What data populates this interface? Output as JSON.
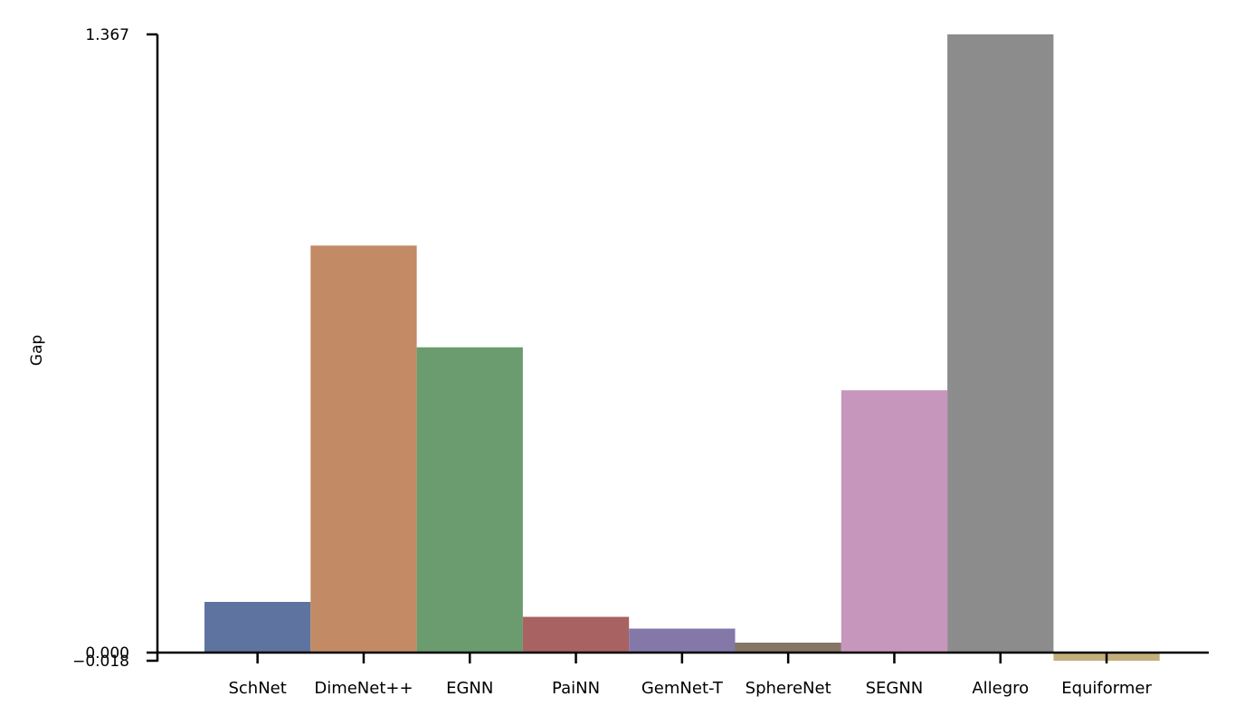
{
  "chart_data": {
    "type": "bar",
    "title": "",
    "xlabel": "",
    "ylabel": "Gap",
    "categories": [
      "SchNet",
      "DimeNet++",
      "EGNN",
      "PaiNN",
      "GemNet-T",
      "SphereNet",
      "SEGNN",
      "Allegro",
      "Equiformer"
    ],
    "values": [
      0.112,
      0.9,
      0.675,
      0.079,
      0.053,
      0.022,
      0.58,
      1.367,
      -0.018
    ],
    "colors": [
      "#5f73a1",
      "#c28a65",
      "#6b9c6f",
      "#a86261",
      "#8378a8",
      "#857565",
      "#c796bd",
      "#8c8c8c",
      "#c4ae7c"
    ],
    "ylim": [
      -0.018,
      1.367
    ],
    "yticks": [
      -0.018,
      0.0,
      1.367
    ],
    "ytick_labels": [
      "−0.018",
      "0.000",
      "1.367"
    ],
    "grid": false,
    "legend": "none"
  }
}
